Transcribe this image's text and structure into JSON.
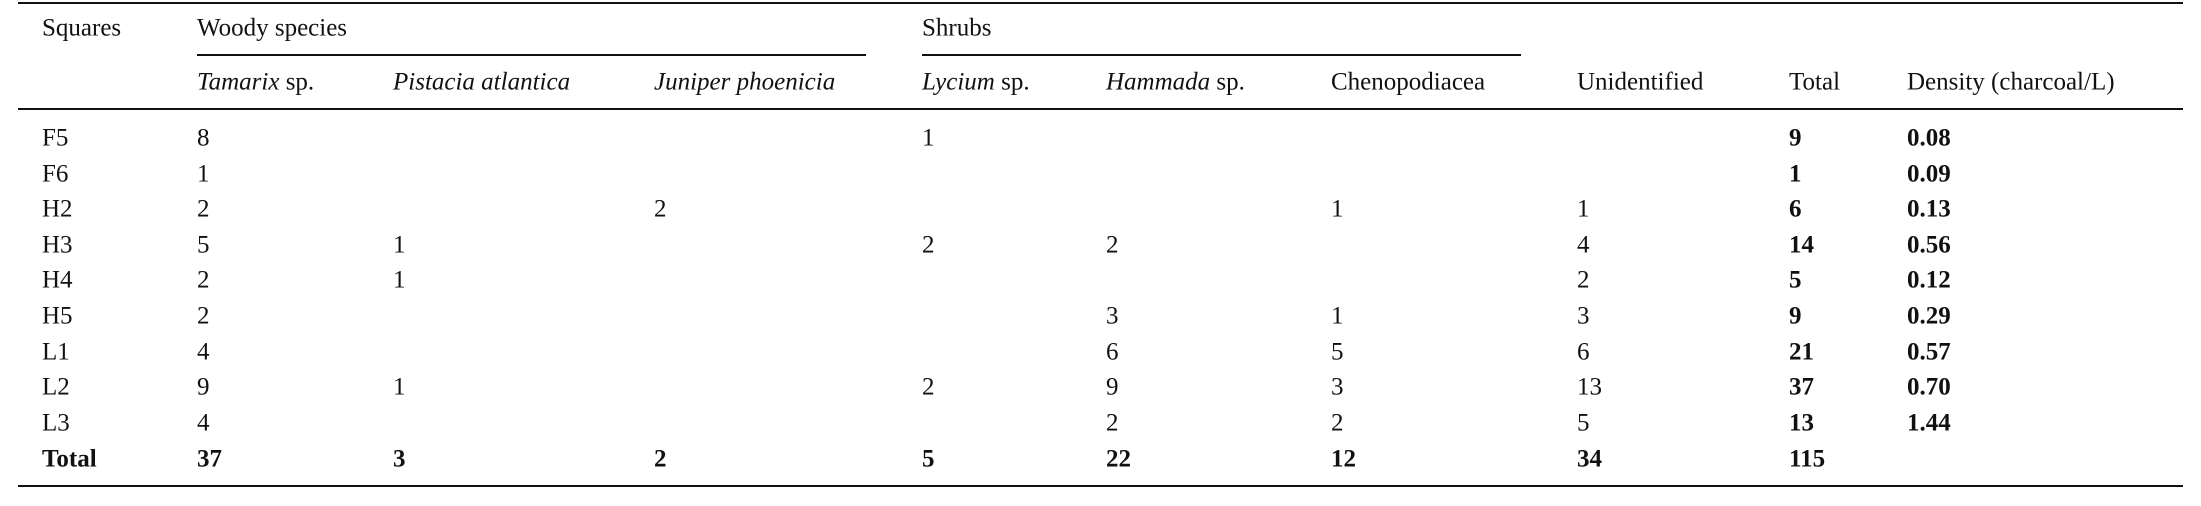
{
  "table": {
    "stub_header": "Squares",
    "groups": [
      {
        "label": "Woody species",
        "span": [
          1,
          3
        ]
      },
      {
        "label": "Shrubs",
        "span": [
          4,
          6
        ]
      }
    ],
    "columns": [
      [
        {
          "text": "Tamarix",
          "italic": true
        },
        {
          "text": "sp.",
          "italic": false
        }
      ],
      [
        {
          "text": "Pistacia atlantica",
          "italic": true
        }
      ],
      [
        {
          "text": "Juniper phoenicia",
          "italic": true
        }
      ],
      [
        {
          "text": "Lycium",
          "italic": true
        },
        {
          "text": "sp.",
          "italic": false
        }
      ],
      [
        {
          "text": "Hammada",
          "italic": true
        },
        {
          "text": "sp.",
          "italic": false
        }
      ],
      [
        {
          "text": "Chenopodiacea",
          "italic": false
        }
      ],
      [
        {
          "text": "Unidentified",
          "italic": false
        }
      ],
      [
        {
          "text": "Total",
          "italic": false
        }
      ],
      [
        {
          "text": "Density (charcoal/L)",
          "italic": false
        }
      ]
    ],
    "bold_columns": [
      8,
      9
    ],
    "rows": [
      {
        "label": "F5",
        "cells": [
          8,
          null,
          null,
          1,
          null,
          null,
          null,
          9,
          0.08
        ]
      },
      {
        "label": "F6",
        "cells": [
          1,
          null,
          null,
          null,
          null,
          null,
          null,
          1,
          0.09
        ]
      },
      {
        "label": "H2",
        "cells": [
          2,
          null,
          2,
          null,
          null,
          1,
          1,
          6,
          0.13
        ]
      },
      {
        "label": "H3",
        "cells": [
          5,
          1,
          null,
          2,
          2,
          null,
          4,
          14,
          0.56
        ]
      },
      {
        "label": "H4",
        "cells": [
          2,
          1,
          null,
          null,
          null,
          null,
          2,
          5,
          0.12
        ]
      },
      {
        "label": "H5",
        "cells": [
          2,
          null,
          null,
          null,
          3,
          1,
          3,
          9,
          0.29
        ]
      },
      {
        "label": "L1",
        "cells": [
          4,
          null,
          null,
          null,
          6,
          5,
          6,
          21,
          0.57
        ]
      },
      {
        "label": "L2",
        "cells": [
          9,
          1,
          null,
          2,
          9,
          3,
          13,
          37,
          0.7
        ]
      },
      {
        "label": "L3",
        "cells": [
          4,
          null,
          null,
          null,
          2,
          2,
          5,
          13,
          1.44
        ]
      }
    ],
    "total_row": {
      "label": "Total",
      "cells": [
        37,
        3,
        2,
        5,
        22,
        12,
        34,
        115,
        null
      ]
    }
  }
}
